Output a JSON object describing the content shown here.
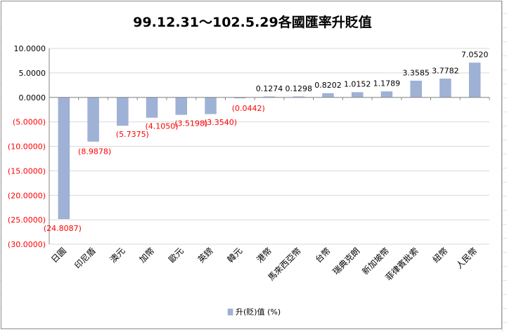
{
  "chart_data": {
    "type": "bar",
    "title": "99.12.31～102.5.29各國匯率升貶值",
    "categories": [
      "日圓",
      "印尼盾",
      "澳元",
      "加幣",
      "歐元",
      "英鎊",
      "韓元",
      "港幣",
      "馬來西亞幣",
      "台幣",
      "瑞典克朗",
      "新加坡幣",
      "菲律賓批索",
      "紐幣",
      "人民幣"
    ],
    "series": [
      {
        "name": "升(貶)值 (%)",
        "values": [
          -24.8087,
          -8.9878,
          -5.7375,
          -4.105,
          -3.5198,
          -3.354,
          -0.0442,
          0.1274,
          0.1298,
          0.8202,
          1.0152,
          1.1789,
          3.3585,
          3.7782,
          7.052
        ]
      }
    ],
    "data_labels": [
      "(24.8087)",
      "(8.9878)",
      "(5.7375)",
      "(4.1050)",
      "(3.5198)",
      "(3.3540)",
      "(0.0442)",
      "0.1274",
      "0.1298",
      "0.8202",
      "1.0152",
      "1.1789",
      "3.3585",
      "3.7782",
      "7.0520"
    ],
    "ylim": [
      -30,
      10
    ],
    "y_ticks": [
      {
        "value": 10,
        "label": "10.0000"
      },
      {
        "value": 5,
        "label": "5.0000"
      },
      {
        "value": 0,
        "label": "0.0000"
      },
      {
        "value": -5,
        "label": "(5.0000)"
      },
      {
        "value": -10,
        "label": "(10.0000)"
      },
      {
        "value": -15,
        "label": "(15.0000)"
      },
      {
        "value": -20,
        "label": "(20.0000)"
      },
      {
        "value": -25,
        "label": "(25.0000)"
      },
      {
        "value": -30,
        "label": "(30.0000)"
      }
    ],
    "grid": true,
    "legend_position": "bottom",
    "colors": {
      "bar": "#9fb2d6",
      "bar_edge": "#8a9fc8",
      "negative_text": "#ff0000",
      "positive_text": "#000000",
      "gridline": "#d9d9d9"
    }
  }
}
